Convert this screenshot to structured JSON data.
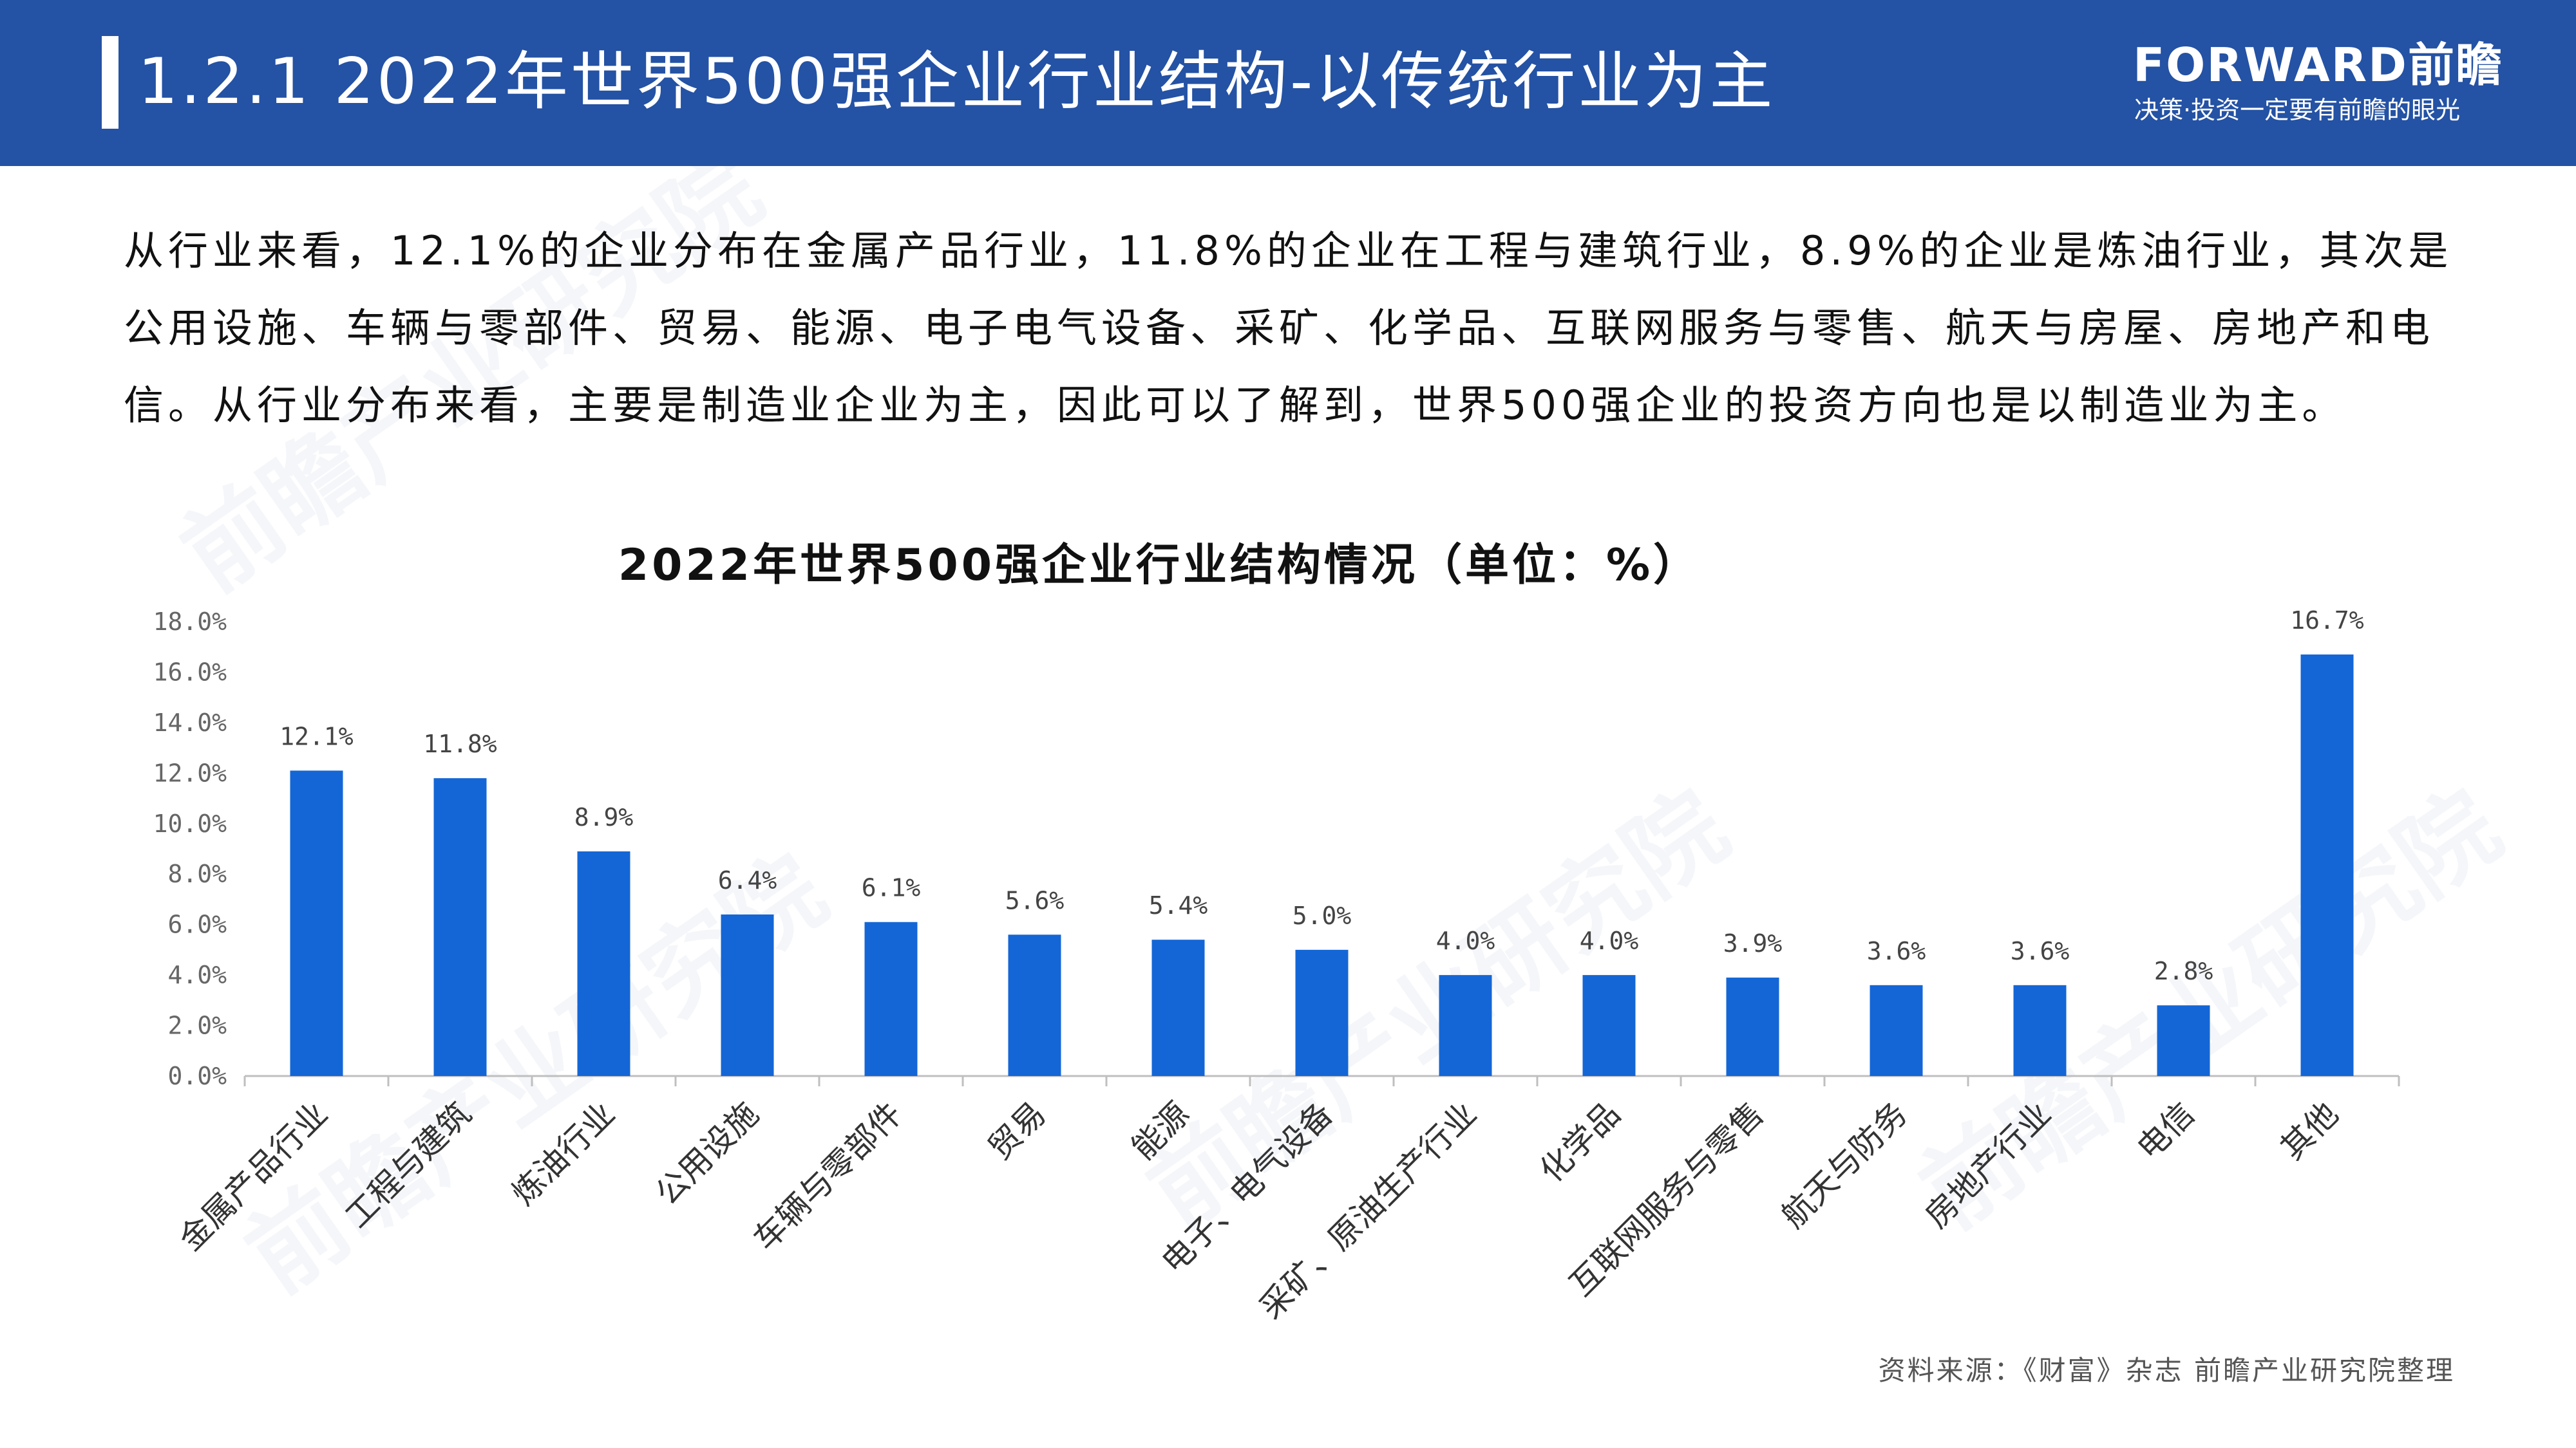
{
  "header": {
    "title": "1.2.1 2022年世界500强企业行业结构-以传统行业为主",
    "brand_name": "FORWARD前瞻",
    "brand_slogan": "决策·投资一定要有前瞻的眼光"
  },
  "intro_text": "从行业来看，12.1%的企业分布在金属产品行业，11.8%的企业在工程与建筑行业，8.9%的企业是炼油行业，其次是公用设施、车辆与零部件、贸易、能源、电子电气设备、采矿、化学品、互联网服务与零售、航天与房屋、房地产和电信。从行业分布来看，主要是制造业企业为主，因此可以了解到，世界500强企业的投资方向也是以制造业为主。",
  "source_text": "资料来源：《财富》杂志 前瞻产业研究院整理",
  "colors": {
    "header_bg": "#2452a4",
    "bar": "#1466d6",
    "axis": "#bfbfbf",
    "tick_text": "#666666",
    "label_text": "#444444"
  },
  "chart_data": {
    "type": "bar",
    "title": "2022年世界500强企业行业结构情况（单位：%）",
    "xlabel": "",
    "ylabel": "",
    "ylim": [
      0,
      18
    ],
    "yticks": [
      "0.0%",
      "2.0%",
      "4.0%",
      "6.0%",
      "8.0%",
      "10.0%",
      "12.0%",
      "14.0%",
      "16.0%",
      "18.0%"
    ],
    "grid": false,
    "categories": [
      "金属产品行业",
      "工程与建筑",
      "炼油行业",
      "公用设施",
      "车辆与零部件",
      "贸易",
      "能源",
      "电子、电气设备",
      "采矿、原油生产行业",
      "化学品",
      "互联网服务与零售",
      "航天与防务",
      "房地产行业",
      "电信",
      "其他"
    ],
    "values": [
      12.1,
      11.8,
      8.9,
      6.4,
      6.1,
      5.6,
      5.4,
      5.0,
      4.0,
      4.0,
      3.9,
      3.6,
      3.6,
      2.8,
      16.7
    ],
    "data_labels": [
      "12.1%",
      "11.8%",
      "8.9%",
      "6.4%",
      "6.1%",
      "5.6%",
      "5.4%",
      "5.0%",
      "4.0%",
      "4.0%",
      "3.9%",
      "3.6%",
      "3.6%",
      "2.8%",
      "16.7%"
    ]
  }
}
